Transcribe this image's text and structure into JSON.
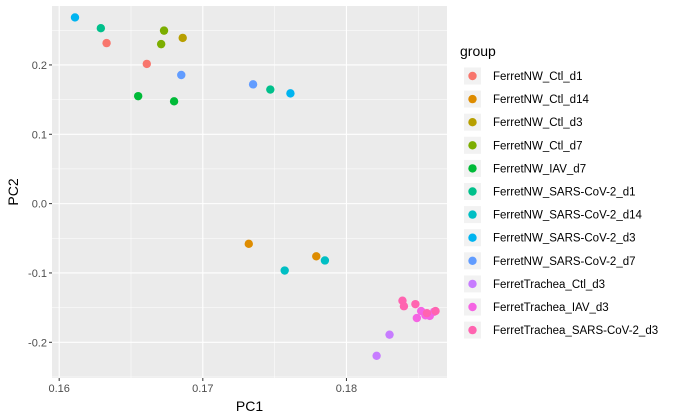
{
  "chart_data": {
    "type": "scatter",
    "xlabel": "PC1",
    "ylabel": "PC2",
    "xlim": [
      0.1595,
      0.187
    ],
    "ylim": [
      -0.2515,
      0.285
    ],
    "x_ticks": [
      0.16,
      0.17,
      0.18
    ],
    "x_tick_labels": [
      "0.16",
      "0.17",
      "0.18"
    ],
    "y_ticks": [
      -0.2,
      -0.1,
      0.0,
      0.1,
      0.2
    ],
    "y_tick_labels": [
      "-0.2",
      "-0.1",
      "0.0",
      "0.1",
      "0.2"
    ],
    "grid": true,
    "panel_background": "#EBEBEB",
    "legend": {
      "title": "group",
      "position": "right"
    },
    "series": [
      {
        "name": "FerretNW_Ctl_d1",
        "color": "#F8766D",
        "points": [
          [
            0.1633,
            0.2315
          ],
          [
            0.1661,
            0.2015
          ]
        ]
      },
      {
        "name": "FerretNW_Ctl_d14",
        "color": "#DE8C00",
        "points": [
          [
            0.1732,
            -0.058
          ],
          [
            0.1779,
            -0.076
          ]
        ]
      },
      {
        "name": "FerretNW_Ctl_d3",
        "color": "#B79F00",
        "points": [
          [
            0.1686,
            0.239
          ]
        ]
      },
      {
        "name": "FerretNW_Ctl_d7",
        "color": "#7CAE00",
        "points": [
          [
            0.1673,
            0.2495
          ],
          [
            0.1671,
            0.23
          ]
        ]
      },
      {
        "name": "FerretNW_IAV_d7",
        "color": "#00BA38",
        "points": [
          [
            0.1655,
            0.155
          ],
          [
            0.168,
            0.1475
          ]
        ]
      },
      {
        "name": "FerretNW_SARS-CoV-2_d1",
        "color": "#00C08B",
        "points": [
          [
            0.1629,
            0.253
          ],
          [
            0.1747,
            0.1645
          ]
        ]
      },
      {
        "name": "FerretNW_SARS-CoV-2_d14",
        "color": "#00BFC4",
        "points": [
          [
            0.1757,
            -0.0965
          ],
          [
            0.1785,
            -0.082
          ]
        ]
      },
      {
        "name": "FerretNW_SARS-CoV-2_d3",
        "color": "#00B4F0",
        "points": [
          [
            0.1611,
            0.2685
          ],
          [
            0.1761,
            0.159
          ]
        ]
      },
      {
        "name": "FerretNW_SARS-CoV-2_d7",
        "color": "#619CFF",
        "points": [
          [
            0.1685,
            0.1855
          ],
          [
            0.1735,
            0.172
          ]
        ]
      },
      {
        "name": "FerretTrachea_Ctl_d3",
        "color": "#C77CFF",
        "points": [
          [
            0.183,
            -0.189
          ],
          [
            0.1821,
            -0.2195
          ]
        ]
      },
      {
        "name": "FerretTrachea_IAV_d3",
        "color": "#F564E3",
        "points": [
          [
            0.1852,
            -0.155
          ],
          [
            0.1855,
            -0.161
          ],
          [
            0.1858,
            -0.162
          ],
          [
            0.1861,
            -0.156
          ],
          [
            0.1849,
            -0.165
          ]
        ]
      },
      {
        "name": "FerretTrachea_SARS-CoV-2_d3",
        "color": "#FF64B0",
        "points": [
          [
            0.1839,
            -0.14
          ],
          [
            0.184,
            -0.148
          ],
          [
            0.1848,
            -0.145
          ],
          [
            0.1856,
            -0.158
          ],
          [
            0.1862,
            -0.155
          ]
        ]
      }
    ]
  }
}
